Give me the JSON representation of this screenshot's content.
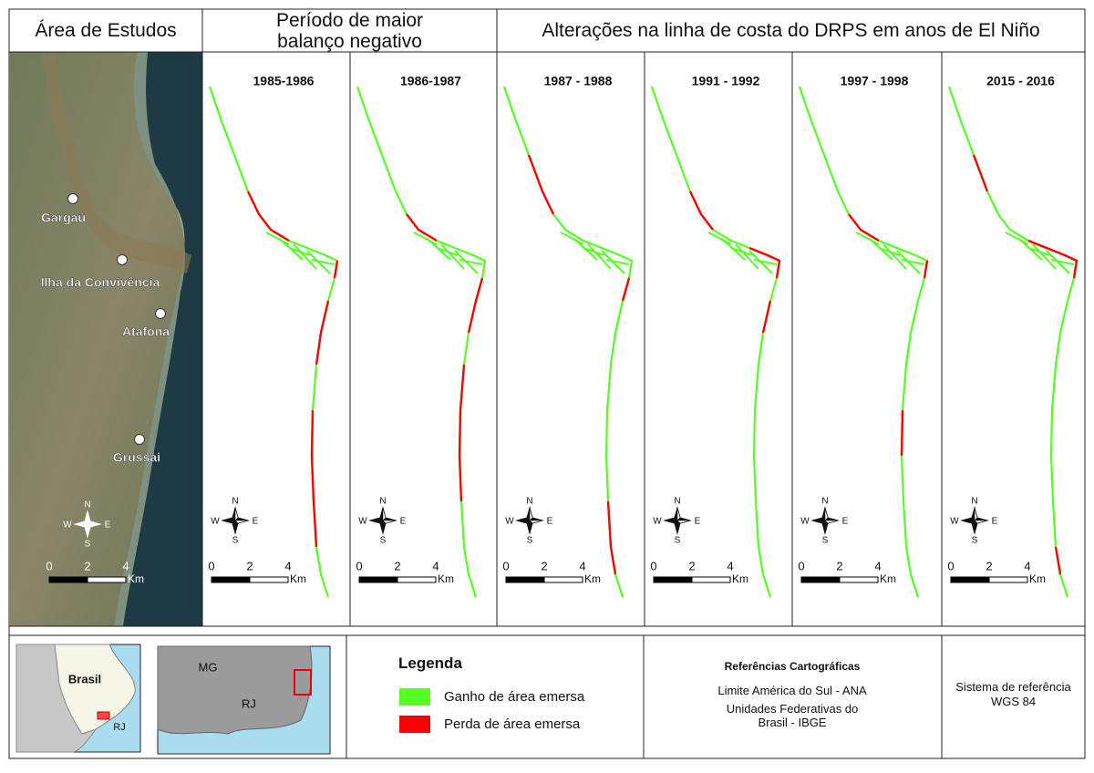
{
  "header": {
    "study_area": "Área de Estudos",
    "negative_period": "Período de maior balanço negativo",
    "el_nino": "Alterações na linha de costa do DRPS em anos de El Niño"
  },
  "study_area": {
    "places": [
      "Gargaú",
      "Ilha da Convivência",
      "Atafona",
      "Grussai"
    ]
  },
  "panels": [
    "1985-1986",
    "1986-1987",
    "1987 - 1988",
    "1991 - 1992",
    "1997 - 1998",
    "2015 - 2016"
  ],
  "compass": {
    "n": "N",
    "s": "S",
    "w": "W",
    "e": "E"
  },
  "scale": {
    "ticks": [
      "0",
      "2",
      "4"
    ],
    "unit": "Km"
  },
  "locator": {
    "country": "Brasil",
    "state": "RJ"
  },
  "state_map": {
    "labels": [
      "MG",
      "RJ"
    ]
  },
  "legend": {
    "title": "Legenda",
    "items": [
      {
        "label": "Ganho de área emersa",
        "color": "#55ff22"
      },
      {
        "label": "Perda de área emersa",
        "color": "#ff0000"
      }
    ]
  },
  "references": {
    "title": "Referências Cartográficas",
    "lines": [
      "Limite América do Sul - ANA",
      "Unidades Federativas do Brasil - IBGE"
    ]
  },
  "reference_system": {
    "title": "Sistema de referência",
    "datum": "WGS 84"
  }
}
